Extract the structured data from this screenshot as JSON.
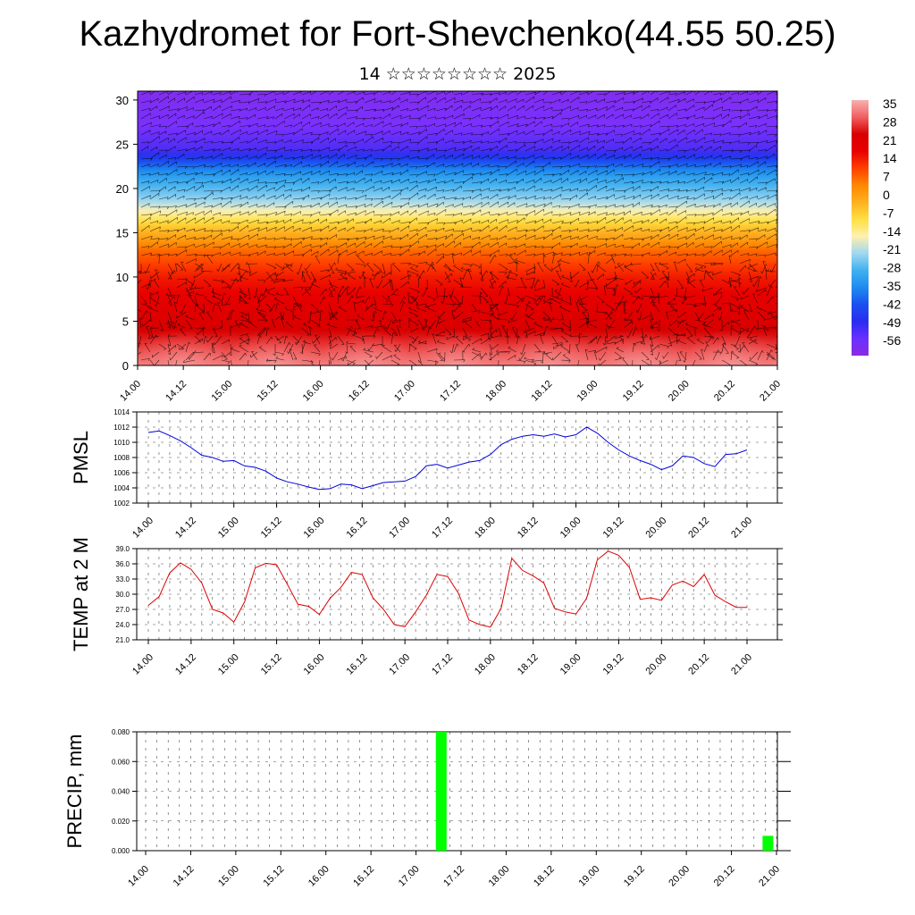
{
  "title": "Kazhydromet for Fort-Shevchenko(44.55 50.25)",
  "subtitle": "14 ☆☆☆☆☆☆☆☆ 2025",
  "time_ticks": [
    "14.00",
    "14.12",
    "15.00",
    "15.12",
    "16.00",
    "16.12",
    "17.00",
    "17.12",
    "18.00",
    "18.12",
    "19.00",
    "19.12",
    "20.00",
    "20.12",
    "21.00"
  ],
  "chart_data": [
    {
      "type": "heatmap",
      "name": "cross-section",
      "y_ticks": [
        "0",
        "5",
        "10",
        "15",
        "20",
        "25",
        "30"
      ],
      "ylim": [
        0,
        31
      ],
      "colorbar_labels": [
        "35",
        "28",
        "21",
        "14",
        "7",
        "0",
        "-7",
        "-14",
        "-21",
        "-28",
        "-35",
        "-42",
        "-49",
        "-56"
      ],
      "colorbar_range": [
        -60,
        38
      ],
      "temperature_profile": {
        "height": [
          0,
          5,
          10,
          13,
          15,
          17,
          19,
          21,
          23,
          24.5,
          27,
          31
        ],
        "temp": [
          35,
          26,
          18,
          10,
          0,
          -12,
          -22,
          -30,
          -42,
          -52,
          -56,
          -58
        ]
      },
      "colors": {
        "warm": "#e60000",
        "orange": "#ff8800",
        "yellow": "#ffe040",
        "cyan": "#40b0f0",
        "blue": "#1030e0",
        "purple": "#8040ff"
      }
    },
    {
      "type": "line",
      "name": "pmsl",
      "ylabel": "PMSL",
      "y_ticks": [
        "1014",
        "1012",
        "1010",
        "1008",
        "1006",
        "1004",
        "1002"
      ],
      "ylim": [
        1002,
        1014
      ],
      "x_step_hours": 3,
      "values": [
        1011.3,
        1011.5,
        1010.9,
        1010.2,
        1009.3,
        1008.3,
        1008.0,
        1007.5,
        1007.6,
        1006.9,
        1006.7,
        1006.2,
        1005.3,
        1004.8,
        1004.5,
        1004.1,
        1003.8,
        1003.9,
        1004.5,
        1004.4,
        1003.9,
        1004.3,
        1004.7,
        1004.8,
        1004.9,
        1005.5,
        1006.9,
        1007.1,
        1006.6,
        1007.0,
        1007.4,
        1007.6,
        1008.4,
        1009.7,
        1010.4,
        1010.8,
        1011.0,
        1010.8,
        1011.1,
        1010.7,
        1011.0,
        1012.0,
        1011.2,
        1010.0,
        1009.0,
        1008.2,
        1007.6,
        1007.1,
        1006.4,
        1006.9,
        1008.2,
        1008.0,
        1007.2,
        1006.8,
        1008.4,
        1008.5,
        1009.0
      ],
      "color": "#0000dd"
    },
    {
      "type": "line",
      "name": "temp2m",
      "ylabel": "TEMP at 2 M",
      "y_ticks": [
        "39.0",
        "36.0",
        "33.0",
        "30.0",
        "27.0",
        "24.0",
        "21.0"
      ],
      "ylim": [
        21,
        39
      ],
      "x_step_hours": 3,
      "values": [
        27.8,
        29.5,
        34.2,
        36.2,
        34.9,
        32.2,
        27.0,
        26.3,
        24.5,
        28.5,
        35.2,
        36.1,
        35.8,
        32.0,
        28.0,
        27.6,
        26.0,
        29.2,
        31.3,
        34.3,
        33.9,
        29.3,
        27.0,
        24.0,
        23.6,
        26.5,
        29.8,
        33.9,
        33.5,
        30.2,
        24.9,
        24.0,
        23.5,
        27.2,
        37.1,
        34.7,
        33.6,
        32.2,
        27.2,
        26.5,
        26.1,
        29.2,
        36.8,
        38.5,
        37.7,
        35.3,
        29.0,
        29.3,
        28.8,
        31.8,
        32.6,
        31.5,
        33.9,
        29.8,
        28.5,
        27.4,
        27.4
      ],
      "color": "#dd0000"
    },
    {
      "type": "bar",
      "name": "precip",
      "ylabel": "PRECIP, mm",
      "y_ticks": [
        "0.080",
        "0.060",
        "0.040",
        "0.020",
        "0.000"
      ],
      "ylim": [
        0,
        0.08
      ],
      "bars": [
        {
          "time_hours": 78,
          "value": 0.08
        },
        {
          "time_hours": 165,
          "value": 0.01
        }
      ],
      "color": "#00ff00"
    }
  ]
}
